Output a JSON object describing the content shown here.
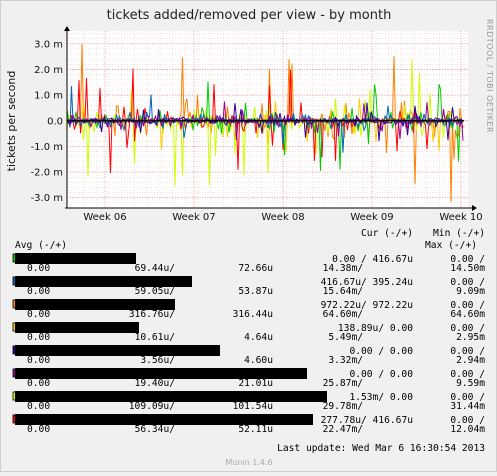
{
  "chart_data": {
    "type": "line",
    "title": "tickets added/removed per view - by month",
    "ylabel": "tickets per second",
    "side_label": "RRDTOOL / TOBI OETIKER",
    "ylim": [
      -3.4,
      3.5
    ],
    "y_ticks": [
      {
        "value": 3.0,
        "label": "3.0 m"
      },
      {
        "value": 2.0,
        "label": "2.0 m"
      },
      {
        "value": 1.0,
        "label": "1.0 m"
      },
      {
        "value": 0.0,
        "label": "0.0"
      },
      {
        "value": -1.0,
        "label": "-1.0 m"
      },
      {
        "value": -2.0,
        "label": "-2.0 m"
      },
      {
        "value": -3.0,
        "label": "-3.0 m"
      }
    ],
    "x_ticks": [
      "Week 06",
      "Week 07",
      "Week 08",
      "Week 09",
      "Week 10"
    ],
    "grid": true,
    "legend_headers": {
      "avg": "Avg (-/+)",
      "cur": "Cur (-/+)",
      "min": "Min (-/+)",
      "max": "Max (-/+)"
    },
    "series": [
      {
        "color": "#00cc00",
        "cur": "0.00 / 416.67u",
        "min": "0.00 /",
        "avg_neg": "0.00",
        "avg_pos": "69.44u/",
        "avg_pos2": "72.66u",
        "max_neg": "14.38m/",
        "max_pos": "14.50m",
        "peak": 2.0
      },
      {
        "color": "#0066b3",
        "cur": "416.67u/ 395.24u",
        "min": "0.00 /",
        "avg_neg": "0.00",
        "avg_pos": "59.05u/",
        "avg_pos2": "53.87u",
        "max_neg": "15.64m/",
        "max_pos": "9.09m",
        "peak": 1.4
      },
      {
        "color": "#ff8000",
        "cur": "972.22u/ 972.22u",
        "min": "0.00 /",
        "avg_neg": "0.00",
        "avg_pos": "316.76u/",
        "avg_pos2": "316.44u",
        "max_neg": "64.60m/",
        "max_pos": "64.60m",
        "peak": 3.2
      },
      {
        "color": "#ffcc00",
        "cur": "138.89u/   0.00",
        "min": "0.00 /",
        "avg_neg": "0.00",
        "avg_pos": "10.61u/",
        "avg_pos2": "4.64u",
        "max_neg": "5.49m/",
        "max_pos": "2.95m",
        "peak": 1.2
      },
      {
        "color": "#330099",
        "cur": "0.00 /   0.00",
        "min": "0.00 /",
        "avg_neg": "0.00",
        "avg_pos": "3.56u/",
        "avg_pos2": "4.60u",
        "max_neg": "3.32m/",
        "max_pos": "2.94m",
        "peak": 0.8
      },
      {
        "color": "#990099",
        "cur": "0.00 /   0.00",
        "min": "0.00 /",
        "avg_neg": "0.00",
        "avg_pos": "19.40u/",
        "avg_pos2": "21.01u",
        "max_neg": "25.87m/",
        "max_pos": "9.59m",
        "peak": 1.0
      },
      {
        "color": "#ccff00",
        "cur": "1.53m/   0.00",
        "min": "0.00 /",
        "avg_neg": "0.00",
        "avg_pos": "109.09u/",
        "avg_pos2": "101.54u",
        "max_neg": "29.78m/",
        "max_pos": "31.44m",
        "peak": 2.6
      },
      {
        "color": "#ff0000",
        "cur": "277.78u/ 416.67u",
        "min": "0.00 /",
        "avg_neg": "0.00",
        "avg_pos": "56.34u/",
        "avg_pos2": "52.11u",
        "max_neg": "22.47m/",
        "max_pos": "12.04m",
        "peak": 2.2
      }
    ],
    "last_update": "Last update: Wed Mar  6 16:30:54 2013",
    "footer": "Munin 1.4.6"
  }
}
